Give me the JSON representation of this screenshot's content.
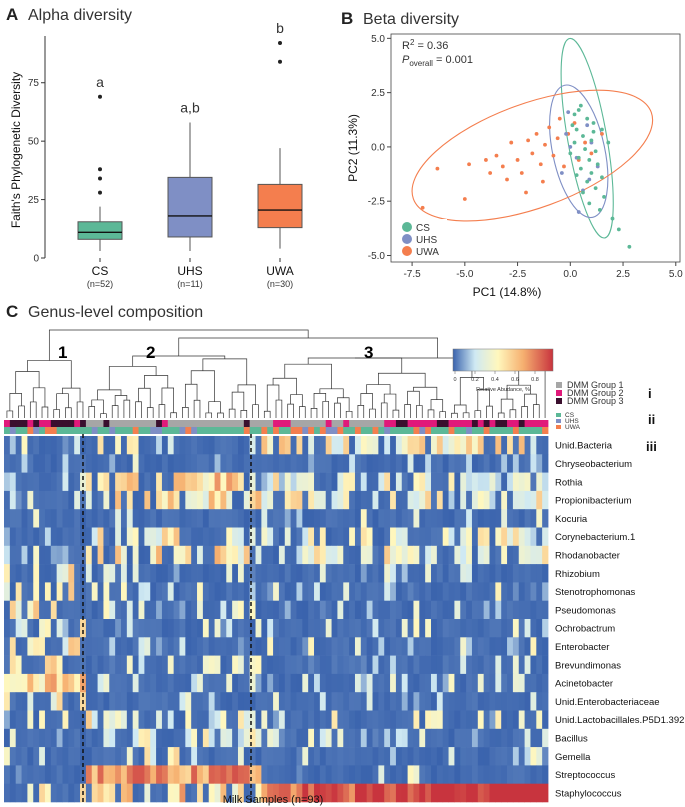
{
  "panel_a": {
    "letter": "A",
    "title": "Alpha diversity",
    "chart_data": {
      "type": "box",
      "ylabel": "Faith's Phylogenetic Diversity",
      "ylim": [
        0,
        95
      ],
      "yticks": [
        0,
        25,
        50,
        75
      ],
      "groups": [
        {
          "name": "CS",
          "n": "(n=52)",
          "color": "#5cb897",
          "min": 3,
          "q1": 8,
          "median": 11,
          "q3": 15.5,
          "max": 22,
          "outliers": [
            28,
            34,
            38,
            69
          ],
          "letter": "a"
        },
        {
          "name": "UHS",
          "n": "(n=11)",
          "color": "#7f8fc5",
          "min": 3,
          "q1": 9,
          "median": 18,
          "q3": 34.5,
          "max": 58,
          "outliers": [],
          "letter": "a,b"
        },
        {
          "name": "UWA",
          "n": "(n=30)",
          "color": "#f47e4e",
          "min": 4,
          "q1": 13,
          "median": 20.5,
          "q3": 31.5,
          "max": 47,
          "outliers": [
            84,
            92
          ],
          "letter": "b"
        }
      ]
    }
  },
  "panel_b": {
    "letter": "B",
    "title": "Beta diversity",
    "stats": {
      "r2_label": "R",
      "r2_sup": "2",
      "r2_value": " = 0.36",
      "p_label": "P",
      "p_sub": "overall",
      "p_value": " = 0.001"
    },
    "chart_data": {
      "type": "scatter",
      "xlabel": "PC1 (14.8%)",
      "ylabel": "PC2 (11.3%)",
      "xlim": [
        -8.5,
        5.2
      ],
      "ylim": [
        -5.3,
        5.2
      ],
      "xticks": [
        -7.5,
        -5.0,
        -2.5,
        0.0,
        2.5,
        5.0
      ],
      "yticks": [
        -5.0,
        -2.5,
        0.0,
        2.5,
        5.0
      ],
      "legend": [
        "CS",
        "UHS",
        "UWA"
      ],
      "series": [
        {
          "name": "CS",
          "color": "#5cb897",
          "ellipse": {
            "cx": 0.8,
            "cy": 0.4,
            "rx": 4.8,
            "ry": 0.9,
            "angle": -80
          },
          "points": [
            [
              0.2,
              1.5
            ],
            [
              0.5,
              1.9
            ],
            [
              0.8,
              1.3
            ],
            [
              1.1,
              1.1
            ],
            [
              0.3,
              0.8
            ],
            [
              0.6,
              0.5
            ],
            [
              1.0,
              0.3
            ],
            [
              0.2,
              0.2
            ],
            [
              0.7,
              -0.1
            ],
            [
              1.2,
              -0.2
            ],
            [
              0.4,
              -0.5
            ],
            [
              0.9,
              -0.6
            ],
            [
              1.3,
              -0.8
            ],
            [
              0.5,
              -1.0
            ],
            [
              1.0,
              -1.2
            ],
            [
              1.5,
              -1.4
            ],
            [
              0.8,
              -1.6
            ],
            [
              1.2,
              -1.9
            ],
            [
              0.6,
              -2.1
            ],
            [
              1.6,
              -2.3
            ],
            [
              0.9,
              -2.6
            ],
            [
              1.4,
              -2.9
            ],
            [
              2.0,
              -3.3
            ],
            [
              2.3,
              -3.8
            ],
            [
              2.8,
              -4.6
            ],
            [
              0.1,
              1.0
            ],
            [
              0.4,
              1.7
            ],
            [
              1.5,
              0.8
            ],
            [
              1.8,
              0.2
            ],
            [
              0.0,
              -0.3
            ],
            [
              0.3,
              -1.3
            ],
            [
              1.1,
              0.7
            ]
          ]
        },
        {
          "name": "UHS",
          "color": "#7f8fc5",
          "ellipse": {
            "cx": 0.4,
            "cy": -0.2,
            "rx": 3.2,
            "ry": 1.2,
            "angle": -78
          },
          "points": [
            [
              -0.2,
              0.6
            ],
            [
              0.3,
              -0.5
            ],
            [
              0.8,
              1.0
            ],
            [
              -0.4,
              -1.2
            ],
            [
              0.6,
              -2.0
            ],
            [
              1.0,
              0.2
            ],
            [
              -0.1,
              1.6
            ],
            [
              0.4,
              -3.0
            ],
            [
              1.3,
              -0.9
            ],
            [
              0.0,
              0.0
            ],
            [
              0.9,
              -1.5
            ]
          ]
        },
        {
          "name": "UWA",
          "color": "#f47e4e",
          "ellipse": {
            "cx": -1.8,
            "cy": -0.4,
            "rx": 6.0,
            "ry": 2.4,
            "angle": 20
          },
          "points": [
            [
              -7.0,
              -2.8
            ],
            [
              -6.3,
              -1.0
            ],
            [
              -5.0,
              -2.4
            ],
            [
              -4.8,
              -0.8
            ],
            [
              -4.0,
              -0.6
            ],
            [
              -3.8,
              -1.2
            ],
            [
              -3.5,
              -0.4
            ],
            [
              -3.2,
              -0.9
            ],
            [
              -3.0,
              -1.5
            ],
            [
              -2.8,
              0.2
            ],
            [
              -2.5,
              -0.6
            ],
            [
              -2.3,
              -1.2
            ],
            [
              -2.0,
              0.3
            ],
            [
              -1.8,
              -0.3
            ],
            [
              -1.6,
              0.6
            ],
            [
              -1.4,
              -0.8
            ],
            [
              -1.2,
              0.1
            ],
            [
              -1.0,
              0.9
            ],
            [
              -0.8,
              -0.4
            ],
            [
              -0.6,
              0.4
            ],
            [
              -0.5,
              1.3
            ],
            [
              -0.3,
              -0.9
            ],
            [
              -0.1,
              0.6
            ],
            [
              0.2,
              1.1
            ],
            [
              0.4,
              -0.6
            ],
            [
              0.7,
              0.2
            ],
            [
              1.0,
              -0.3
            ],
            [
              1.5,
              0.6
            ],
            [
              -1.3,
              -1.6
            ],
            [
              -2.1,
              -2.1
            ]
          ]
        }
      ]
    }
  },
  "panel_c": {
    "letter": "C",
    "title": "Genus-level composition",
    "cluster_labels": [
      "1",
      "2",
      "3"
    ],
    "colorbar": {
      "ticks": [
        "0",
        "0.2",
        "0.4",
        "0.6",
        "0.8"
      ],
      "label": "Relative Abudance, %"
    },
    "dmm_legend": [
      {
        "label": "DMM Group 1",
        "color": "#a6a6a6"
      },
      {
        "label": "DMM Group 2",
        "color": "#e0197a"
      },
      {
        "label": "DMM Group 3",
        "color": "#3a0f2e"
      }
    ],
    "group_legend": [
      {
        "label": "CS",
        "color": "#5cb897"
      },
      {
        "label": "UHS",
        "color": "#7f8fc5"
      },
      {
        "label": "UWA",
        "color": "#f47e4e"
      }
    ],
    "roman_labels": [
      "i",
      "ii",
      "iii"
    ],
    "xlabel": "Milk Samples (n=93)",
    "chart_data": {
      "type": "heatmap",
      "n_samples": 93,
      "cluster_sizes": [
        14,
        30,
        49
      ],
      "rows": [
        "Unid.Bacteria",
        "Chryseobacterium",
        "Rothia",
        "Propionibacterium",
        "Kocuria",
        "Corynebacterium.1",
        "Rhodanobacter",
        "Rhizobium",
        "Stenotrophomonas",
        "Pseudomonas",
        "Ochrobactrum",
        "Enterobacter",
        "Brevundimonas",
        "Acinetobacter",
        "Unid.Enterobacteriaceae",
        "Unid.Lactobacillales.P5D1.392",
        "Bacillus",
        "Gemella",
        "Streptococcus",
        "Staphylococcus"
      ],
      "value_range": [
        0,
        0.9
      ]
    }
  }
}
